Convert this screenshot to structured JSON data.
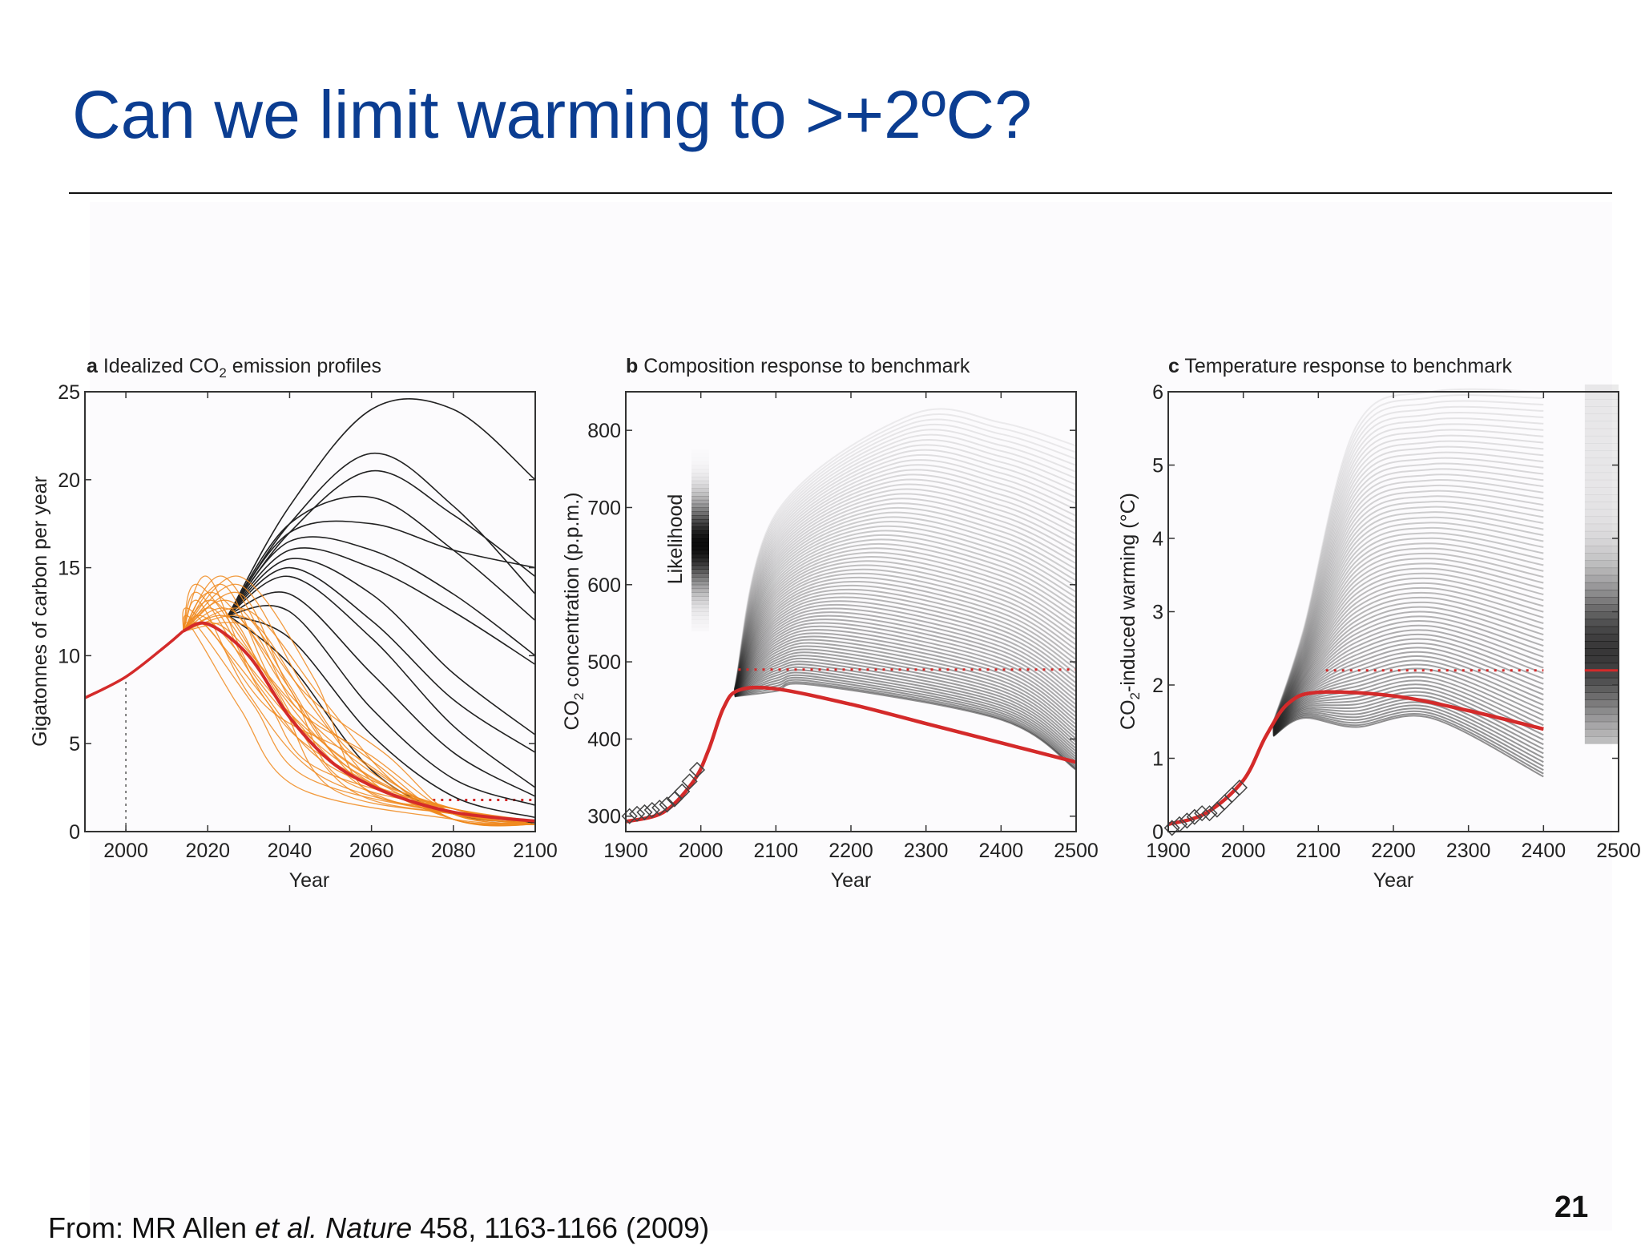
{
  "slide": {
    "title": "Can we limit warming to >+2ºC?",
    "caption_prefix": "From: MR Allen ",
    "caption_italic": "et al. Nature",
    "caption_suffix": " 458, 1163-1166 (2009)",
    "page_number": "21"
  },
  "colors": {
    "title": "#0b3d91",
    "best_estimate": "#d42a2a",
    "orange_profiles": "#f08a1e",
    "black_profiles": "#222222"
  },
  "chart_data": [
    {
      "panel": "a",
      "type": "line",
      "title_letter": "a",
      "title_pre": " Idealized CO",
      "title_sub": "2",
      "title_post": " emission profiles",
      "xlabel": "Year",
      "ylabel": "Gigatonnes of carbon per year",
      "xlim": [
        1990,
        2100
      ],
      "ylim": [
        0,
        25
      ],
      "xticks": [
        2000,
        2020,
        2040,
        2060,
        2080,
        2100
      ],
      "yticks": [
        0,
        5,
        10,
        15,
        20,
        25
      ],
      "historical": {
        "x": [
          1990,
          2000,
          2010,
          2014
        ],
        "y": [
          7.6,
          8.8,
          10.6,
          11.4
        ]
      },
      "red_profile": {
        "x": [
          2014,
          2020,
          2030,
          2040,
          2050,
          2060,
          2070,
          2080,
          2090,
          2100
        ],
        "y": [
          11.4,
          11.8,
          10.0,
          6.5,
          4.0,
          2.6,
          1.7,
          1.1,
          0.8,
          0.6
        ]
      },
      "reference_dotted_y": 1.8,
      "reference_dotted_from": 2075,
      "year_2000_marker": 2000,
      "peaks_x": [
        2016,
        2018,
        2020,
        2022,
        2024,
        2026,
        2028,
        2030
      ],
      "black_profiles": [
        {
          "x": [
            2025,
            2040,
            2060,
            2080,
            2100
          ],
          "y": [
            12.3,
            18.5,
            24.0,
            24.0,
            20.0
          ]
        },
        {
          "x": [
            2025,
            2040,
            2060,
            2080,
            2100
          ],
          "y": [
            12.3,
            17.5,
            21.5,
            18.5,
            13.5
          ]
        },
        {
          "x": [
            2025,
            2040,
            2060,
            2080,
            2100
          ],
          "y": [
            12.3,
            17.0,
            20.5,
            18.0,
            14.5
          ]
        },
        {
          "x": [
            2025,
            2040,
            2060,
            2080,
            2100
          ],
          "y": [
            12.3,
            17.5,
            19.0,
            16.0,
            12.0
          ]
        },
        {
          "x": [
            2025,
            2040,
            2060,
            2080,
            2100
          ],
          "y": [
            12.3,
            17.0,
            17.5,
            16.0,
            15.0
          ]
        },
        {
          "x": [
            2025,
            2040,
            2060,
            2080,
            2100
          ],
          "y": [
            12.3,
            16.5,
            16.0,
            13.5,
            10.0
          ]
        },
        {
          "x": [
            2025,
            2040,
            2060,
            2080,
            2100
          ],
          "y": [
            12.3,
            16.0,
            15.0,
            12.5,
            9.5
          ]
        },
        {
          "x": [
            2025,
            2040,
            2060,
            2080,
            2100
          ],
          "y": [
            12.3,
            15.5,
            13.5,
            9.0,
            5.5
          ]
        },
        {
          "x": [
            2025,
            2040,
            2060,
            2080,
            2100
          ],
          "y": [
            12.3,
            15.0,
            12.0,
            7.5,
            4.5
          ]
        },
        {
          "x": [
            2025,
            2040,
            2060,
            2080,
            2100
          ],
          "y": [
            12.3,
            14.5,
            11.0,
            6.0,
            2.5
          ]
        },
        {
          "x": [
            2025,
            2040,
            2060,
            2080,
            2100
          ],
          "y": [
            12.3,
            13.5,
            9.0,
            4.5,
            2.0
          ]
        },
        {
          "x": [
            2025,
            2040,
            2060,
            2080,
            2100
          ],
          "y": [
            12.3,
            12.5,
            7.0,
            3.0,
            1.5
          ]
        },
        {
          "x": [
            2025,
            2040,
            2060,
            2080,
            2100
          ],
          "y": [
            12.3,
            11.0,
            5.5,
            2.0,
            0.8
          ]
        },
        {
          "x": [
            2025,
            2040,
            2060,
            2080,
            2100
          ],
          "y": [
            12.3,
            9.5,
            3.5,
            1.0,
            0.5
          ]
        }
      ]
    },
    {
      "panel": "b",
      "type": "line",
      "title_letter": "b",
      "title_text": " Composition response to benchmark",
      "xlabel": "Year",
      "ylabel_pre": "CO",
      "ylabel_sub": "2",
      "ylabel_post": " concentration (p.p.m.)",
      "likelihood_label": "Likelihood",
      "xlim": [
        1900,
        2500
      ],
      "ylim": [
        280,
        850
      ],
      "xticks": [
        1900,
        2000,
        2100,
        2200,
        2300,
        2400,
        2500
      ],
      "yticks": [
        300,
        400,
        500,
        600,
        700,
        800
      ],
      "best_estimate": {
        "x": [
          1900,
          1950,
          1990,
          2010,
          2030,
          2050,
          2100,
          2200,
          2300,
          2400,
          2500
        ],
        "y": [
          293,
          305,
          345,
          385,
          440,
          463,
          465,
          445,
          420,
          395,
          370
        ]
      },
      "dotted_line_y": 490,
      "dotted_line_from": 2050,
      "observations": {
        "x": [
          1905,
          1915,
          1925,
          1935,
          1945,
          1955,
          1965,
          1975,
          1985,
          1995
        ],
        "y": [
          300,
          303,
          305,
          308,
          311,
          315,
          322,
          332,
          345,
          360
        ]
      },
      "ensemble_envelope": {
        "x": [
          2050,
          2200,
          2300,
          2400,
          2500
        ],
        "upper": [
          470,
          760,
          820,
          820,
          800
        ],
        "lower": [
          455,
          420,
          400,
          380,
          360
        ]
      }
    },
    {
      "panel": "c",
      "type": "line",
      "title_letter": "c",
      "title_text": " Temperature response to benchmark",
      "xlabel": "Year",
      "ylabel_pre": "CO",
      "ylabel_sub": "2",
      "ylabel_post": "-induced warming (°C)",
      "xlim": [
        1900,
        2500
      ],
      "ylim": [
        0,
        6
      ],
      "xticks": [
        1900,
        2000,
        2100,
        2200,
        2300,
        2400,
        2500
      ],
      "yticks": [
        0,
        1,
        2,
        3,
        4,
        5,
        6
      ],
      "best_estimate": {
        "x": [
          1900,
          1950,
          2000,
          2030,
          2060,
          2100,
          2200,
          2300,
          2400
        ],
        "y": [
          0.1,
          0.25,
          0.7,
          1.3,
          1.75,
          1.9,
          1.85,
          1.65,
          1.4
        ]
      },
      "dotted_line_y": 2.2,
      "dotted_line_from": 2110,
      "observations": {
        "x": [
          1905,
          1915,
          1925,
          1935,
          1945,
          1955,
          1965,
          1975,
          1985,
          1995
        ],
        "y": [
          0.05,
          0.1,
          0.15,
          0.2,
          0.25,
          0.25,
          0.3,
          0.4,
          0.5,
          0.6
        ]
      },
      "ensemble_envelope": {
        "x": [
          2060,
          2200,
          2300,
          2400
        ],
        "upper": [
          2.8,
          5.5,
          6.0,
          6.0
        ],
        "lower": [
          1.3,
          1.2,
          0.9,
          0.7
        ]
      },
      "likelihood_strip_x": [
        2455,
        2500
      ],
      "likelihood_strip_range": [
        1.2,
        6.0
      ],
      "likelihood_best": 2.2
    }
  ]
}
